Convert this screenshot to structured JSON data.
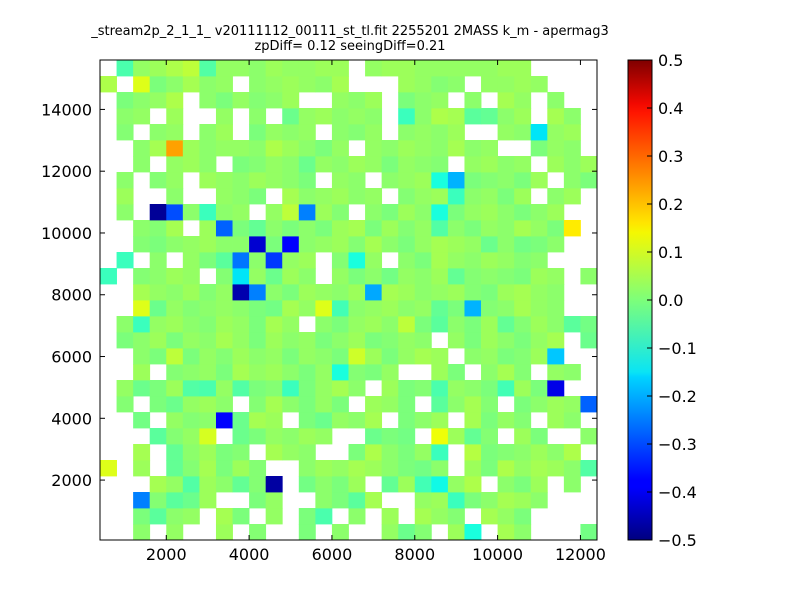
{
  "chart_data": {
    "type": "heatmap",
    "title_line1": "_stream2p_2_1_1_ v20111112_00111_st_tl.fit 2255201 2MASS k_m - apermag3",
    "title_line2": "zpDiff= 0.12 seeingDiff=0.21",
    "xlabel": "",
    "ylabel": "",
    "xlim": [
      400,
      12400
    ],
    "ylim": [
      60,
      15600
    ],
    "x_ticks": [
      "2000",
      "4000",
      "6000",
      "8000",
      "10000",
      "12000"
    ],
    "y_ticks": [
      "2000",
      "4000",
      "6000",
      "8000",
      "10000",
      "12000",
      "14000"
    ],
    "colorbar": {
      "vmin": -0.5,
      "vmax": 0.5,
      "ticks": [
        "0.5",
        "0.4",
        "0.3",
        "0.2",
        "0.1",
        "0.0",
        "−0.1",
        "−0.2",
        "−0.3",
        "−0.4",
        "−0.5"
      ]
    },
    "grid": false,
    "bins": {
      "nx": 30,
      "ny": 30,
      "values": [
        [
          null,
          null,
          0.02,
          null,
          0.03,
          null,
          null,
          0.04,
          null,
          0.01,
          null,
          null,
          0.0,
          null,
          0.02,
          null,
          null,
          0.03,
          -0.02,
          0.01,
          null,
          0.04,
          -0.12,
          null,
          0.05,
          0.02,
          null,
          null,
          null,
          -0.01
        ],
        [
          null,
          null,
          0.0,
          -0.04,
          0.02,
          0.03,
          null,
          0.05,
          0.0,
          null,
          0.03,
          null,
          0.0,
          -0.06,
          null,
          0.02,
          null,
          0.04,
          null,
          0.05,
          0.03,
          0.01,
          null,
          0.05,
          0.03,
          0.0,
          null,
          null,
          null,
          null
        ],
        [
          null,
          null,
          -0.25,
          0.01,
          -0.04,
          -0.02,
          0.04,
          null,
          null,
          0.0,
          0.03,
          null,
          null,
          0.02,
          0.0,
          -0.04,
          0.05,
          null,
          null,
          0.03,
          0.04,
          -0.08,
          0.0,
          0.02,
          0.05,
          0.04,
          0.02,
          null,
          null,
          null
        ],
        [
          null,
          null,
          null,
          0.05,
          0.03,
          -0.05,
          0.04,
          0.02,
          -0.03,
          0.01,
          -0.47,
          null,
          -0.01,
          0.02,
          0.0,
          0.04,
          null,
          -0.03,
          0.04,
          -0.07,
          -0.13,
          0.03,
          0.06,
          null,
          0.02,
          0.0,
          0.04,
          null,
          0.02,
          null
        ],
        [
          0.12,
          null,
          0.04,
          null,
          -0.03,
          0.01,
          0.05,
          0.0,
          0.04,
          0.01,
          null,
          null,
          0.02,
          0.04,
          0.03,
          0.05,
          0.04,
          0.02,
          0.0,
          -0.01,
          0.02,
          null,
          0.04,
          0.0,
          0.06,
          0.03,
          0.05,
          0.04,
          0.02,
          -0.05
        ],
        [
          null,
          null,
          0.05,
          null,
          -0.03,
          0.02,
          0.04,
          0.0,
          0.01,
          null,
          0.05,
          0.03,
          0.02,
          null,
          null,
          0.0,
          0.06,
          0.02,
          0.0,
          0.03,
          -0.08,
          null,
          0.07,
          0.0,
          0.01,
          0.02,
          0.04,
          0.02,
          0.06,
          null
        ],
        [
          null,
          null,
          null,
          -0.04,
          0.01,
          0.03,
          0.11,
          null,
          -0.02,
          0.0,
          0.03,
          0.02,
          0.04,
          0.03,
          null,
          null,
          -0.02,
          0.0,
          -0.01,
          null,
          0.14,
          0.04,
          -0.03,
          0.01,
          null,
          0.04,
          0.0,
          null,
          null,
          0.02
        ],
        [
          null,
          null,
          -0.01,
          null,
          0.03,
          0.01,
          0.02,
          -0.38,
          -0.02,
          0.05,
          0.04,
          null,
          0.0,
          -0.02,
          0.03,
          0.02,
          0.05,
          null,
          0.0,
          0.02,
          0.04,
          null,
          0.05,
          0.0,
          0.03,
          0.01,
          null,
          0.04,
          0.02,
          null
        ],
        [
          null,
          0.01,
          null,
          0.0,
          -0.02,
          0.03,
          0.04,
          0.02,
          null,
          0.01,
          0.05,
          0.02,
          0.0,
          0.03,
          0.0,
          null,
          0.04,
          0.03,
          0.0,
          null,
          -0.04,
          0.02,
          0.05,
          0.01,
          null,
          0.0,
          0.02,
          0.04,
          0.03,
          -0.28
        ],
        [
          null,
          0.03,
          -0.02,
          0.0,
          0.04,
          -0.05,
          -0.06,
          0.03,
          -0.05,
          0.0,
          0.01,
          -0.08,
          0.0,
          0.03,
          0.05,
          0.02,
          null,
          0.04,
          0.0,
          0.01,
          -0.06,
          0.03,
          0.02,
          0.0,
          -0.07,
          0.04,
          0.0,
          -0.41,
          null,
          null
        ],
        [
          null,
          null,
          0.04,
          null,
          0.01,
          0.02,
          0.03,
          0.0,
          0.05,
          0.03,
          0.04,
          0.02,
          0.0,
          0.03,
          -0.12,
          0.01,
          0.0,
          0.03,
          null,
          null,
          0.04,
          0.0,
          null,
          0.02,
          0.05,
          0.01,
          null,
          0.03,
          0.02,
          null
        ],
        [
          null,
          null,
          0.02,
          0.0,
          0.08,
          0.0,
          0.03,
          0.01,
          0.04,
          0.02,
          0.03,
          0.0,
          0.03,
          0.02,
          0.0,
          0.1,
          0.04,
          0.0,
          0.03,
          0.05,
          0.04,
          null,
          0.02,
          0.03,
          0.0,
          0.01,
          0.04,
          -0.18,
          null,
          null
        ],
        [
          null,
          0.0,
          0.02,
          0.04,
          0.0,
          0.03,
          0.02,
          0.05,
          0.03,
          0.0,
          0.04,
          0.02,
          0.03,
          0.0,
          0.02,
          0.04,
          0.0,
          0.01,
          0.03,
          0.02,
          null,
          0.03,
          0.0,
          0.04,
          0.02,
          0.0,
          0.03,
          0.05,
          null,
          -0.02
        ],
        [
          null,
          0.02,
          -0.08,
          0.03,
          0.04,
          0.02,
          0.01,
          0.04,
          0.03,
          0.0,
          0.05,
          0.03,
          null,
          0.02,
          0.0,
          0.03,
          0.04,
          0.02,
          0.08,
          0.0,
          -0.04,
          0.02,
          0.0,
          0.04,
          -0.03,
          0.01,
          0.04,
          0.02,
          -0.04,
          -0.01
        ],
        [
          null,
          null,
          0.12,
          -0.02,
          0.03,
          0.01,
          0.02,
          0.03,
          0.02,
          0.0,
          -0.01,
          0.05,
          0.03,
          0.12,
          -0.07,
          0.02,
          0.03,
          0.04,
          0.02,
          0.03,
          -0.03,
          0.0,
          -0.2,
          0.01,
          0.02,
          0.05,
          0.03,
          0.02,
          null,
          null
        ],
        [
          null,
          null,
          0.05,
          0.03,
          0.02,
          0.04,
          0.01,
          0.03,
          -0.46,
          -0.25,
          0.02,
          0.0,
          0.04,
          0.03,
          0.02,
          0.04,
          -0.21,
          0.05,
          0.04,
          0.02,
          0.03,
          0.04,
          0.01,
          0.0,
          0.04,
          0.05,
          0.03,
          0.02,
          null,
          null
        ],
        [
          -0.08,
          null,
          0.01,
          0.02,
          0.04,
          0.03,
          null,
          0.01,
          -0.15,
          0.03,
          -0.02,
          0.04,
          0.02,
          null,
          0.03,
          0.0,
          0.02,
          -0.01,
          0.03,
          0.02,
          0.04,
          -0.03,
          0.01,
          0.02,
          0.01,
          0.0,
          0.04,
          0.03,
          null,
          0.02
        ],
        [
          null,
          -0.08,
          null,
          0.02,
          null,
          0.03,
          0.0,
          -0.04,
          -0.26,
          0.02,
          -0.32,
          0.03,
          0.04,
          null,
          0.01,
          -0.12,
          0.03,
          null,
          0.02,
          0.0,
          0.05,
          0.03,
          0.02,
          0.04,
          0.03,
          0.01,
          0.02,
          null,
          null,
          null
        ],
        [
          null,
          null,
          0.01,
          0.0,
          0.02,
          0.03,
          0.04,
          0.02,
          0.02,
          -0.43,
          0.0,
          -0.38,
          0.02,
          0.03,
          0.04,
          0.01,
          0.05,
          0.02,
          0.0,
          0.03,
          0.05,
          0.04,
          0.03,
          -0.02,
          0.02,
          -0.01,
          0.0,
          0.02,
          null,
          null
        ],
        [
          null,
          null,
          0.02,
          0.01,
          0.05,
          null,
          0.04,
          -0.28,
          0.0,
          -0.03,
          0.02,
          0.0,
          0.02,
          0.0,
          0.04,
          0.05,
          0.0,
          0.04,
          0.01,
          0.03,
          -0.05,
          0.02,
          0.0,
          0.03,
          0.02,
          0.05,
          0.03,
          0.0,
          0.16,
          null
        ],
        [
          null,
          0.02,
          null,
          -0.48,
          -0.3,
          0.02,
          -0.08,
          0.02,
          0.03,
          null,
          0.03,
          0.08,
          -0.25,
          0.04,
          0.01,
          null,
          0.02,
          0.0,
          0.04,
          0.02,
          -0.12,
          0.0,
          0.03,
          0.04,
          0.02,
          0.0,
          0.02,
          0.04,
          null,
          null
        ],
        [
          null,
          0.04,
          null,
          null,
          0.02,
          null,
          null,
          0.03,
          0.02,
          0.0,
          null,
          0.05,
          0.02,
          0.03,
          0.04,
          0.02,
          0.03,
          null,
          0.01,
          0.03,
          0.04,
          -0.08,
          0.02,
          0.03,
          0.0,
          0.04,
          null,
          0.02,
          0.04,
          null
        ],
        [
          null,
          0.02,
          null,
          0.01,
          0.03,
          null,
          0.04,
          0.03,
          0.02,
          0.04,
          0.03,
          0.02,
          0.0,
          null,
          0.03,
          0.02,
          null,
          0.02,
          0.03,
          0.04,
          -0.12,
          -0.2,
          0.0,
          0.01,
          0.02,
          0.0,
          0.04,
          null,
          0.02,
          0.0
        ],
        [
          null,
          null,
          0.02,
          null,
          0.03,
          0.04,
          0.02,
          null,
          0.0,
          0.01,
          0.03,
          0.02,
          -0.02,
          0.03,
          0.02,
          0.04,
          0.03,
          0.0,
          0.03,
          0.02,
          0.01,
          null,
          0.03,
          0.04,
          0.02,
          0.03,
          null,
          0.04,
          0.02,
          0.04
        ],
        [
          null,
          null,
          0.02,
          0.05,
          0.24,
          0.04,
          0.02,
          0.03,
          0.03,
          0.02,
          0.06,
          0.04,
          0.02,
          0.0,
          0.03,
          null,
          0.03,
          0.02,
          0.04,
          0.03,
          0.02,
          0.05,
          0.02,
          0.03,
          null,
          null,
          0.0,
          0.03,
          0.02,
          null
        ],
        [
          null,
          0.01,
          null,
          0.02,
          0.03,
          null,
          0.02,
          0.04,
          null,
          0.0,
          0.03,
          0.02,
          0.03,
          null,
          0.02,
          0.01,
          0.03,
          null,
          0.02,
          0.03,
          0.02,
          0.04,
          null,
          null,
          0.03,
          0.02,
          -0.15,
          0.03,
          0.04,
          null
        ],
        [
          null,
          0.02,
          0.03,
          null,
          0.04,
          null,
          null,
          0.03,
          null,
          0.02,
          null,
          -0.02,
          0.03,
          0.04,
          0.02,
          0.03,
          0.02,
          null,
          -0.08,
          0.02,
          0.06,
          0.05,
          -0.04,
          -0.03,
          0.02,
          0.04,
          null,
          0.05,
          0.02,
          null
        ],
        [
          null,
          0.0,
          0.02,
          0.03,
          0.06,
          null,
          0.02,
          0.0,
          0.03,
          0.01,
          0.02,
          0.04,
          null,
          null,
          0.03,
          0.02,
          0.04,
          null,
          0.0,
          0.02,
          0.03,
          null,
          0.02,
          null,
          0.05,
          0.03,
          null,
          0.02,
          null,
          null
        ],
        [
          0.06,
          null,
          0.12,
          0.0,
          0.02,
          0.05,
          0.02,
          0.03,
          null,
          0.02,
          0.03,
          0.04,
          0.03,
          0.02,
          0.05,
          null,
          null,
          null,
          0.04,
          0.03,
          0.01,
          0.02,
          null,
          0.03,
          0.03,
          0.04,
          0.03,
          null,
          null,
          null
        ],
        [
          null,
          -0.06,
          0.03,
          0.04,
          0.06,
          0.08,
          -0.05,
          0.03,
          0.03,
          0.02,
          0.04,
          0.03,
          0.03,
          0.04,
          0.04,
          null,
          0.03,
          0.04,
          0.04,
          0.03,
          0.03,
          0.03,
          0.03,
          0.03,
          0.04,
          0.04,
          null,
          null,
          null,
          null
        ]
      ]
    }
  }
}
